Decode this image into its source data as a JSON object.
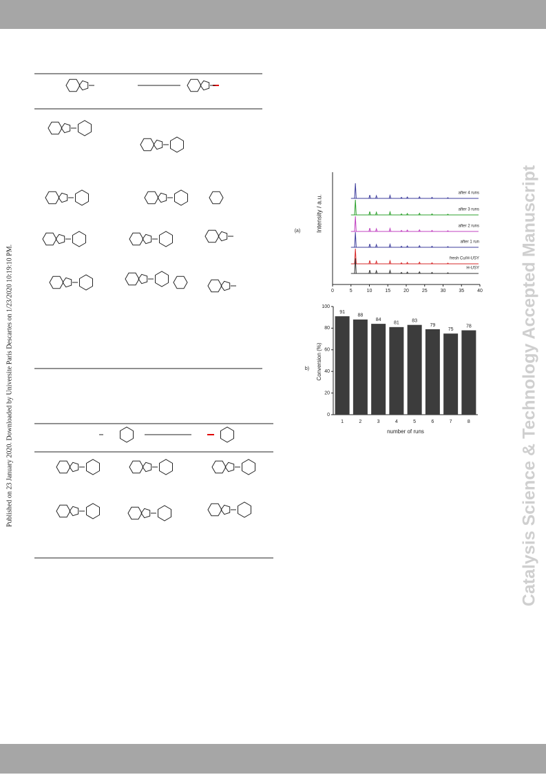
{
  "sidebar_text": "Published on 23 January 2020. Downloaded by Universite Paris Descartes on 1/23/2020 10:19:10 PM.",
  "watermark": "Catalysis Science & Technology Accepted Manuscript",
  "chart_data": [
    {
      "type": "xrd",
      "panel_label": "(a)",
      "y_label": "Intensity / a.u.",
      "x": [
        6.2,
        10.1,
        11.9,
        15.6,
        18.7,
        20.3,
        23.6,
        27.0,
        31.3
      ],
      "xlim": [
        0,
        40
      ],
      "xticks": [
        0,
        5,
        10,
        15,
        20,
        25,
        30,
        35,
        40
      ],
      "series": [
        {
          "name": "after 4 runs",
          "color": "#3b3b9b",
          "values": [
            100,
            22,
            18,
            20,
            7,
            9,
            11,
            7,
            5
          ]
        },
        {
          "name": "after 3 runs",
          "color": "#2ca02c",
          "values": [
            100,
            22,
            18,
            20,
            7,
            9,
            11,
            7,
            5
          ]
        },
        {
          "name": "after 2 runs",
          "color": "#c040c0",
          "values": [
            100,
            22,
            18,
            20,
            7,
            9,
            11,
            7,
            5
          ]
        },
        {
          "name": "after 1 run",
          "color": "#3b3b9b",
          "values": [
            100,
            22,
            18,
            20,
            7,
            9,
            11,
            7,
            5
          ]
        },
        {
          "name": "fresh Cu/H-USY",
          "color": "#d62728",
          "values": [
            100,
            22,
            18,
            20,
            7,
            9,
            11,
            7,
            5
          ]
        },
        {
          "name": "H-USY",
          "color": "#333333",
          "values": [
            100,
            22,
            18,
            20,
            7,
            9,
            11,
            7,
            5
          ]
        }
      ]
    },
    {
      "type": "bar",
      "panel_label": "b)",
      "x_label": "number of runs",
      "y_label": "Conversion (%)",
      "categories": [
        "1",
        "2",
        "3",
        "4",
        "5",
        "6",
        "7",
        "8"
      ],
      "values": [
        91,
        88,
        84,
        81,
        83,
        79,
        75,
        78
      ],
      "color": "#3c3c3c",
      "ylim": [
        0,
        100
      ],
      "yticks": [
        0,
        20,
        40,
        60,
        80,
        100
      ]
    }
  ]
}
